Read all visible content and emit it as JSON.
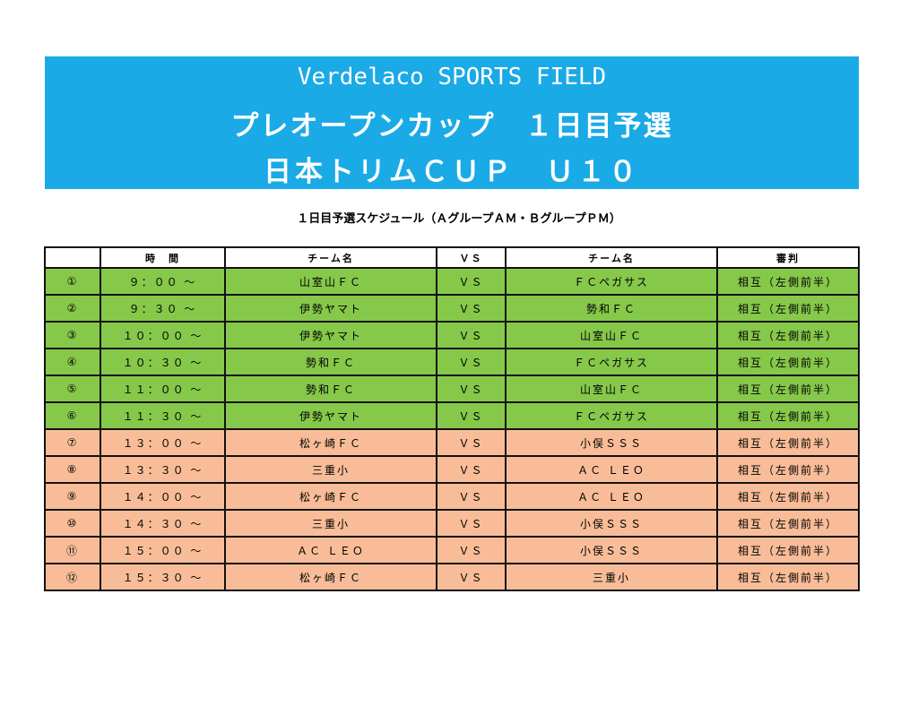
{
  "banner": {
    "line1": "Verdelaco SPORTS FIELD",
    "line2": "プレオープンカップ　１日目予選",
    "line3": "日本トリムＣＵＰ　Ｕ１０",
    "color": "#1aaae6"
  },
  "subtitle": "１日目予選スケジュール（ＡグループＡＭ・ＢグループＰＭ）",
  "table": {
    "headers": [
      "",
      "時　間",
      "チーム名",
      "ＶＳ",
      "チーム名",
      "審判"
    ],
    "rows": [
      {
        "no": "①",
        "time": "９：００ ～",
        "team1": "山室山ＦＣ",
        "vs": "ＶＳ",
        "team2": "ＦＣペガサス",
        "referee": "相互（左側前半）",
        "group": "A"
      },
      {
        "no": "②",
        "time": "９：３０ ～",
        "team1": "伊勢ヤマト",
        "vs": "ＶＳ",
        "team2": "勢和ＦＣ",
        "referee": "相互（左側前半）",
        "group": "A"
      },
      {
        "no": "③",
        "time": "１０：００ ～",
        "team1": "伊勢ヤマト",
        "vs": "ＶＳ",
        "team2": "山室山ＦＣ",
        "referee": "相互（左側前半）",
        "group": "A"
      },
      {
        "no": "④",
        "time": "１０：３０ ～",
        "team1": "勢和ＦＣ",
        "vs": "ＶＳ",
        "team2": "ＦＣペガサス",
        "referee": "相互（左側前半）",
        "group": "A"
      },
      {
        "no": "⑤",
        "time": "１１：００ ～",
        "team1": "勢和ＦＣ",
        "vs": "ＶＳ",
        "team2": "山室山ＦＣ",
        "referee": "相互（左側前半）",
        "group": "A"
      },
      {
        "no": "⑥",
        "time": "１１：３０ ～",
        "team1": "伊勢ヤマト",
        "vs": "ＶＳ",
        "team2": "ＦＣペガサス",
        "referee": "相互（左側前半）",
        "group": "A"
      },
      {
        "no": "⑦",
        "time": "１３：００ ～",
        "team1": "松ヶ崎ＦＣ",
        "vs": "ＶＳ",
        "team2": "小俣ＳＳＳ",
        "referee": "相互（左側前半）",
        "group": "B"
      },
      {
        "no": "⑧",
        "time": "１３：３０ ～",
        "team1": "三重小",
        "vs": "ＶＳ",
        "team2": "ＡＣ ＬＥＯ",
        "referee": "相互（左側前半）",
        "group": "B"
      },
      {
        "no": "⑨",
        "time": "１４：００ ～",
        "team1": "松ヶ崎ＦＣ",
        "vs": "ＶＳ",
        "team2": "ＡＣ ＬＥＯ",
        "referee": "相互（左側前半）",
        "group": "B"
      },
      {
        "no": "⑩",
        "time": "１４：３０ ～",
        "team1": "三重小",
        "vs": "ＶＳ",
        "team2": "小俣ＳＳＳ",
        "referee": "相互（左側前半）",
        "group": "B"
      },
      {
        "no": "⑪",
        "time": "１５：００ ～",
        "team1": "ＡＣ ＬＥＯ",
        "vs": "ＶＳ",
        "team2": "小俣ＳＳＳ",
        "referee": "相互（左側前半）",
        "group": "B"
      },
      {
        "no": "⑫",
        "time": "１５：３０ ～",
        "team1": "松ヶ崎ＦＣ",
        "vs": "ＶＳ",
        "team2": "三重小",
        "referee": "相互（左側前半）",
        "group": "B"
      }
    ],
    "colors": {
      "A": "#86c84a",
      "B": "#f8bd98"
    }
  }
}
